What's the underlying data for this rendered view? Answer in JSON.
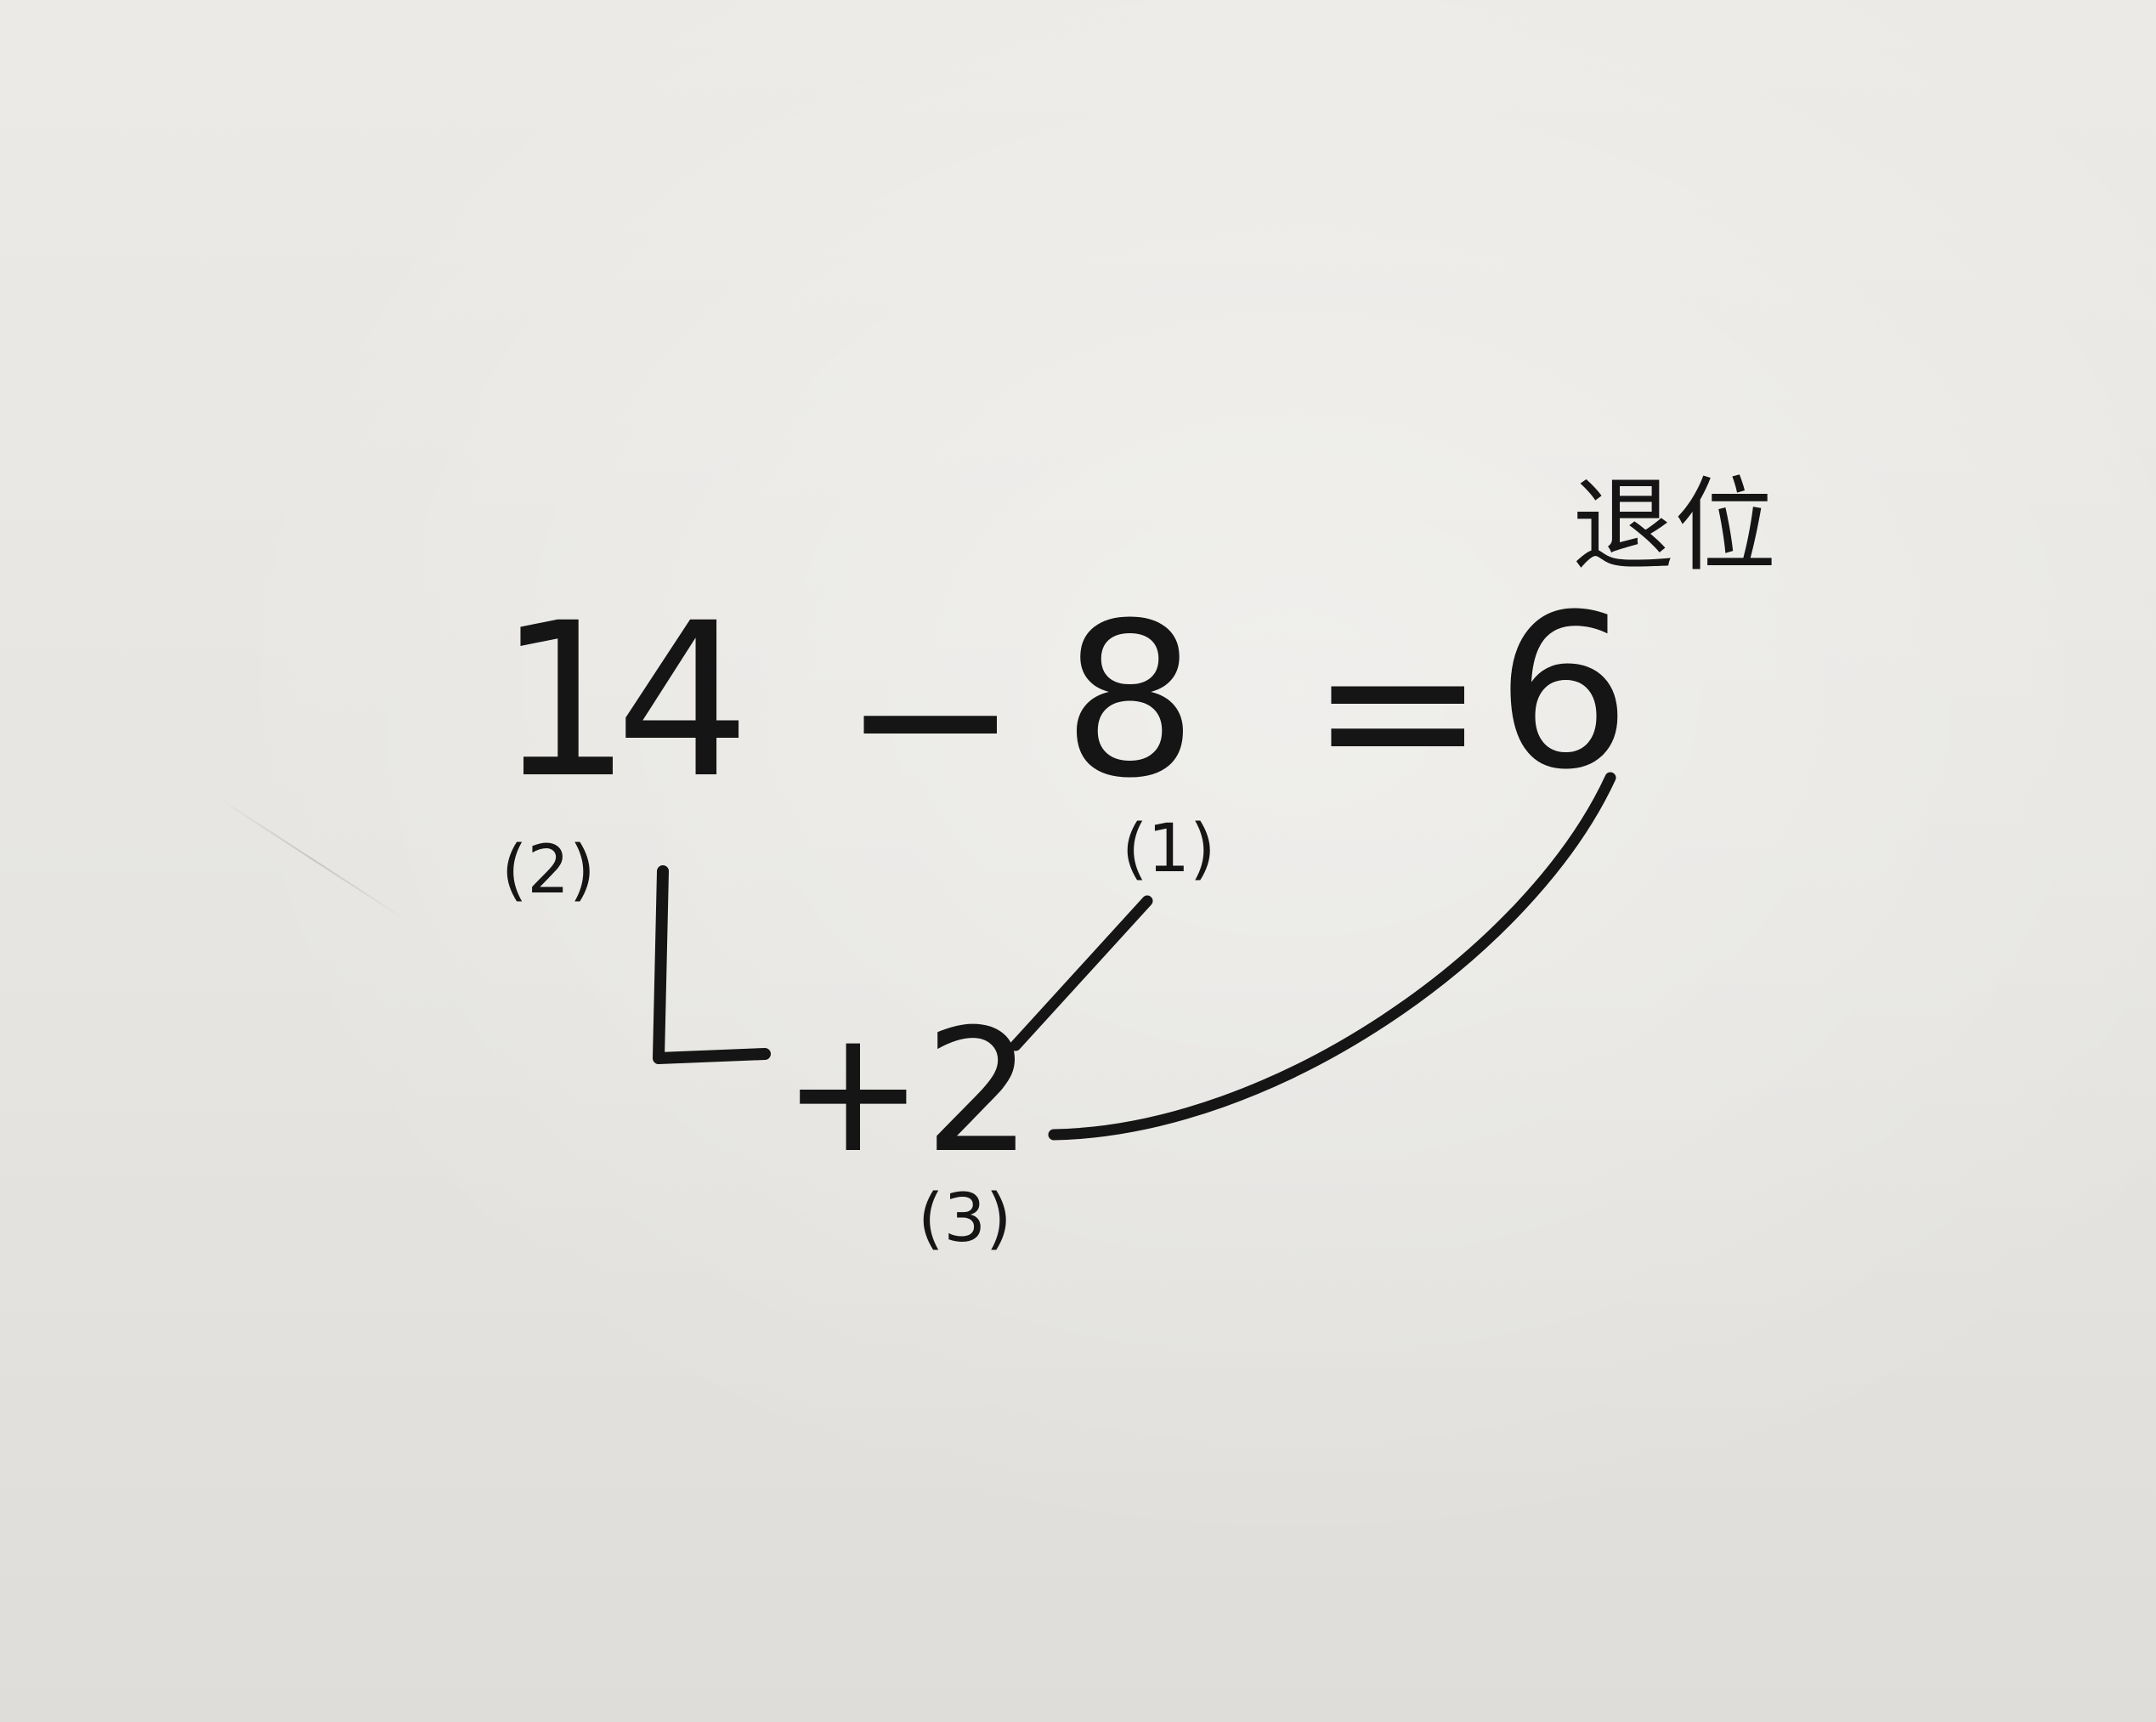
{
  "equation": {
    "minuend": "14",
    "operator_minus": "−",
    "subtrahend": "8",
    "equals": "=",
    "result": "6"
  },
  "annotations": {
    "step_1": "(1)",
    "step_2": "(2)",
    "step_3": "(3)",
    "plus_two": "+2",
    "note": "退位"
  },
  "ink_color": "#151515"
}
